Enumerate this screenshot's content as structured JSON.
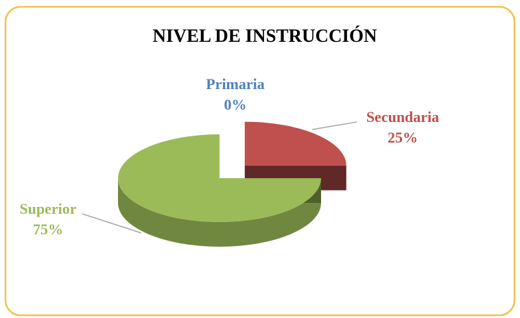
{
  "chart_data": {
    "type": "pie3d",
    "title": "NIVEL DE INSTRUCCIÓN",
    "categories": [
      "Primaria",
      "Secundaria",
      "Superior"
    ],
    "values": [
      0,
      25,
      75
    ],
    "value_labels": [
      "0%",
      "25%",
      "75%"
    ],
    "colors": [
      "#4f81bd",
      "#c0504d",
      "#9bbb59"
    ]
  }
}
